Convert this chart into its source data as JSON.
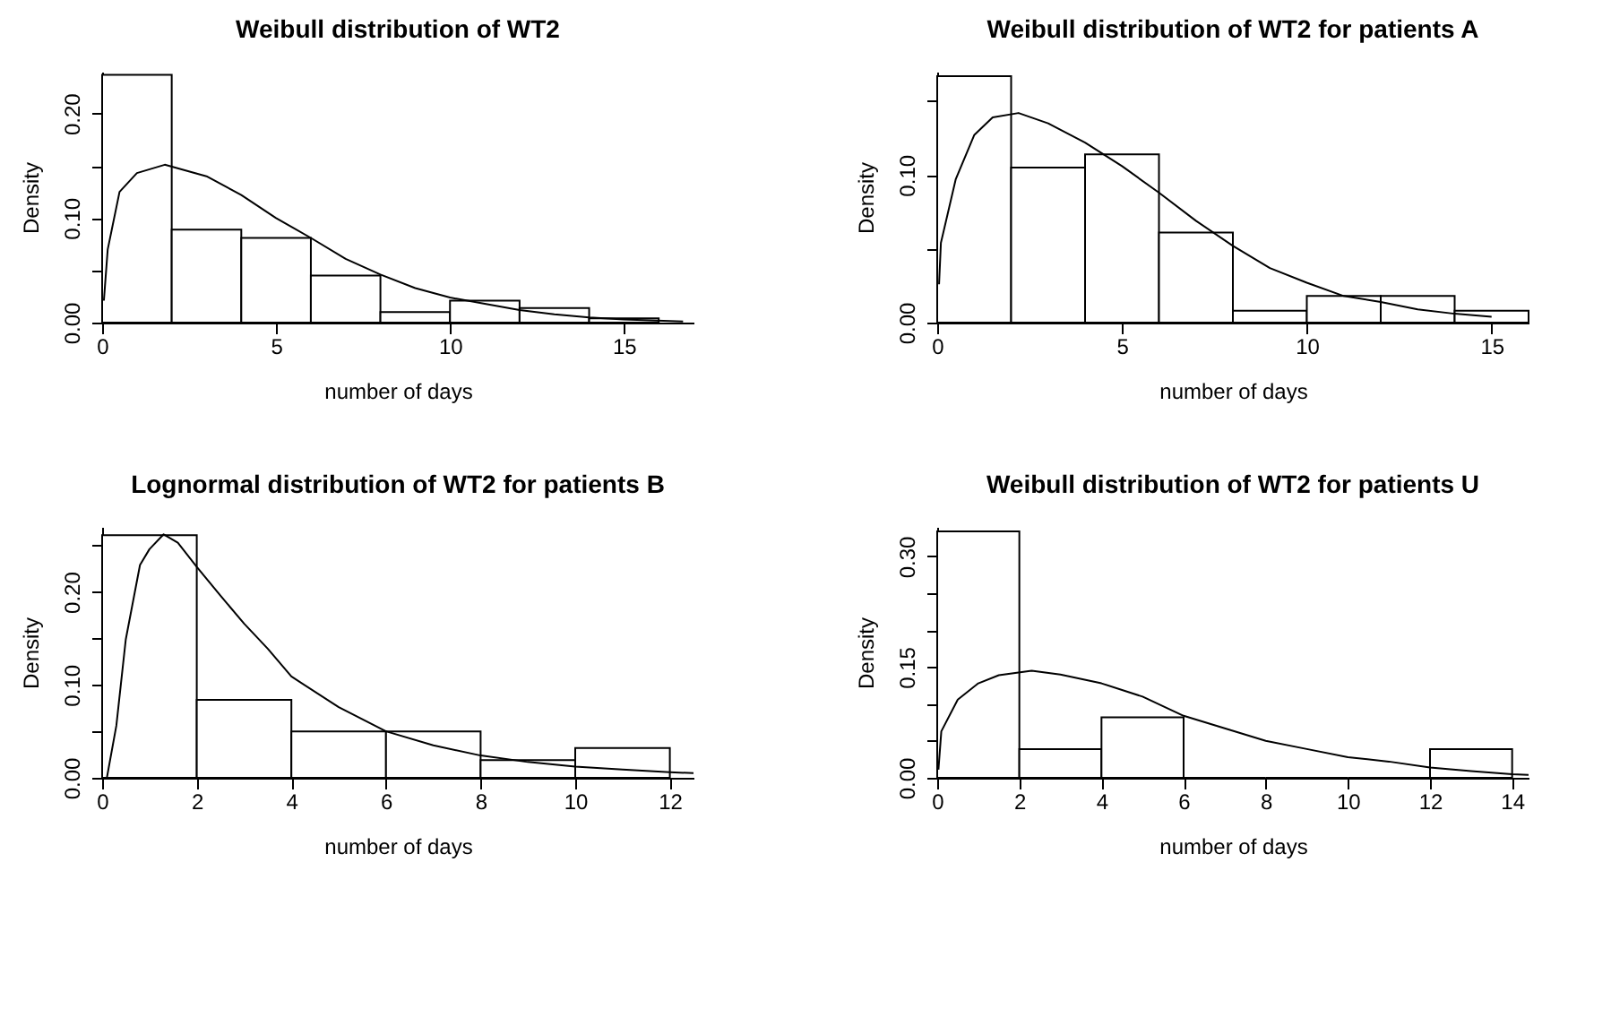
{
  "chart_data": [
    {
      "type": "histogram",
      "color": "#000000",
      "title": "Weibull distribution of WT2",
      "xlabel": "number of days",
      "ylabel": "Density",
      "bins": [
        0,
        2,
        4,
        6,
        8,
        10,
        12,
        14,
        16
      ],
      "values": [
        0.237,
        0.089,
        0.081,
        0.045,
        0.01,
        0.021,
        0.014,
        0.004
      ],
      "series": [
        {
          "type": "line",
          "color": "#000000",
          "x": [
            0.05,
            0.16,
            0.5,
            1,
            1.8,
            3,
            4,
            5,
            6,
            7,
            8,
            9,
            10,
            11,
            12,
            13,
            14,
            15,
            16.7
          ],
          "values": [
            0.021,
            0.07,
            0.125,
            0.143,
            0.151,
            0.14,
            0.122,
            0.1,
            0.081,
            0.061,
            0.046,
            0.033,
            0.024,
            0.018,
            0.012,
            0.008,
            0.005,
            0.003,
            0.001
          ]
        }
      ],
      "xlim": [
        0,
        17
      ],
      "xticks": [
        0,
        5,
        10,
        15
      ],
      "ylim": [
        0,
        0.24
      ],
      "yticks": [
        {
          "value": 0,
          "label": "0.00"
        },
        {
          "value": 0.05,
          "label": null
        },
        {
          "value": 0.1,
          "label": "0.10"
        },
        {
          "value": 0.15,
          "label": null
        },
        {
          "value": 0.2,
          "label": "0.20"
        }
      ]
    },
    {
      "type": "histogram",
      "color": "#000000",
      "title": "Weibull distribution of WT2 for patients A",
      "xlabel": "number of days",
      "ylabel": "Density",
      "bins": [
        0,
        2,
        4,
        6,
        8,
        10,
        12,
        14,
        16
      ],
      "values": [
        0.167,
        0.105,
        0.114,
        0.061,
        0.008,
        0.018,
        0.018,
        0.008
      ],
      "series": [
        {
          "type": "line",
          "color": "#000000",
          "x": [
            0.05,
            0.1,
            0.5,
            1,
            1.5,
            2.2,
            3,
            4,
            5,
            6,
            7,
            8,
            9,
            10,
            11,
            12,
            13,
            14,
            15
          ],
          "values": [
            0.026,
            0.054,
            0.097,
            0.127,
            0.139,
            0.142,
            0.135,
            0.122,
            0.106,
            0.088,
            0.069,
            0.052,
            0.037,
            0.027,
            0.018,
            0.014,
            0.009,
            0.006,
            0.004
          ]
        }
      ],
      "xlim": [
        0,
        16
      ],
      "xticks": [
        0,
        5,
        10,
        15
      ],
      "ylim": [
        0,
        0.17
      ],
      "yticks": [
        {
          "value": 0,
          "label": "0.00"
        },
        {
          "value": 0.05,
          "label": null
        },
        {
          "value": 0.1,
          "label": "0.10"
        },
        {
          "value": 0.15,
          "label": null
        }
      ]
    },
    {
      "type": "histogram",
      "color": "#000000",
      "title": "Lognormal distribution of WT2 for patients B",
      "xlabel": "number of days",
      "ylabel": "Density",
      "bins": [
        0,
        2,
        4,
        6,
        8,
        10,
        12
      ],
      "values": [
        0.261,
        0.084,
        0.05,
        0.05,
        0.019,
        0.032
      ],
      "series": [
        {
          "type": "line",
          "color": "#000000",
          "x": [
            0.1,
            0.3,
            0.5,
            0.8,
            1,
            1.3,
            1.6,
            2,
            2.5,
            3,
            3.5,
            4,
            5,
            6,
            7,
            8,
            9,
            10,
            11,
            12,
            12.5
          ],
          "values": [
            0,
            0.056,
            0.149,
            0.229,
            0.246,
            0.262,
            0.253,
            0.227,
            0.196,
            0.166,
            0.139,
            0.109,
            0.076,
            0.05,
            0.035,
            0.024,
            0.017,
            0.012,
            0.009,
            0.006,
            0.005
          ]
        }
      ],
      "xlim": [
        0,
        12.5
      ],
      "xticks": [
        0,
        2,
        4,
        6,
        8,
        10,
        12
      ],
      "ylim": [
        0,
        0.27
      ],
      "yticks": [
        {
          "value": 0,
          "label": "0.00"
        },
        {
          "value": 0.05,
          "label": null
        },
        {
          "value": 0.1,
          "label": "0.10"
        },
        {
          "value": 0.15,
          "label": null
        },
        {
          "value": 0.2,
          "label": "0.20"
        },
        {
          "value": 0.25,
          "label": null
        }
      ]
    },
    {
      "type": "histogram",
      "color": "#000000",
      "title": "Weibull distribution of WT2 for patients U",
      "xlabel": "number of days",
      "ylabel": "Density",
      "bins": [
        0,
        2,
        4,
        6,
        8,
        10,
        12,
        14
      ],
      "values": [
        0.334,
        0.039,
        0.082,
        0,
        0,
        0,
        0.039
      ],
      "series": [
        {
          "type": "line",
          "color": "#000000",
          "x": [
            0.03,
            0.1,
            0.5,
            1,
            1.5,
            2.3,
            3,
            4,
            5,
            6,
            7,
            8,
            9,
            10,
            11,
            12,
            13,
            14,
            14.4
          ],
          "values": [
            0.011,
            0.063,
            0.106,
            0.128,
            0.139,
            0.145,
            0.14,
            0.128,
            0.11,
            0.084,
            0.067,
            0.05,
            0.039,
            0.028,
            0.022,
            0.014,
            0.009,
            0.005,
            0.004
          ]
        }
      ],
      "xlim": [
        0,
        14.4
      ],
      "xticks": [
        0,
        2,
        4,
        6,
        8,
        10,
        12,
        14
      ],
      "ylim": [
        0,
        0.34
      ],
      "yticks": [
        {
          "value": 0,
          "label": "0.00"
        },
        {
          "value": 0.05,
          "label": null
        },
        {
          "value": 0.1,
          "label": null
        },
        {
          "value": 0.15,
          "label": "0.15"
        },
        {
          "value": 0.2,
          "label": null
        },
        {
          "value": 0.25,
          "label": null
        },
        {
          "value": 0.3,
          "label": "0.30"
        }
      ]
    }
  ]
}
